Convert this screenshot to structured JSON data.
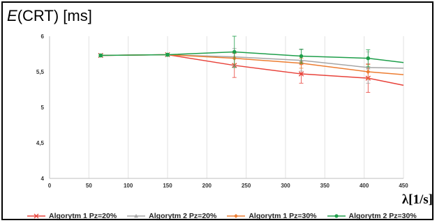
{
  "title": {
    "symbol": "E",
    "rest": "(CRT) [ms]"
  },
  "chart_data": {
    "type": "line",
    "xlabel": "λ[1/s]",
    "ylabel": "",
    "xlim": [
      0,
      450
    ],
    "ylim": [
      4,
      6
    ],
    "x_ticks": [
      0,
      50,
      100,
      150,
      200,
      250,
      300,
      350,
      400,
      450
    ],
    "y_ticks": [
      4,
      4.5,
      5,
      5.5,
      6
    ],
    "y_tick_labels": [
      "4",
      "4,5",
      "5",
      "5,5",
      "6"
    ],
    "grid": "vertical",
    "legend": "bottom",
    "series": [
      {
        "name": "Algorytm 1 Pz=20%",
        "color": "#e8423a",
        "marker": "x",
        "x": [
          65,
          150,
          235,
          320,
          405,
          450
        ],
        "y": [
          5.73,
          5.74,
          5.59,
          5.47,
          5.41,
          5.31
        ],
        "err": [
          0.02,
          0.02,
          0.17,
          0.13,
          0.2,
          0
        ]
      },
      {
        "name": "Algorytm 2 Pz=20%",
        "color": "#a6a6a6",
        "marker": "triangle",
        "x": [
          65,
          150,
          235,
          320,
          405,
          450
        ],
        "y": [
          5.73,
          5.74,
          5.71,
          5.66,
          5.56,
          5.55
        ],
        "err": [
          0.02,
          0.02,
          0.12,
          0.15,
          0.22,
          0
        ]
      },
      {
        "name": "Algorytm 1 Pz=30%",
        "color": "#ed7d31",
        "marker": "diamond",
        "x": [
          65,
          150,
          235,
          320,
          405,
          450
        ],
        "y": [
          5.73,
          5.74,
          5.69,
          5.62,
          5.5,
          5.46
        ],
        "err": [
          0.02,
          0.02,
          0.08,
          0.07,
          0.1,
          0
        ]
      },
      {
        "name": "Algorytm 2 Pz=30%",
        "color": "#1e9e4a",
        "marker": "circle",
        "x": [
          65,
          150,
          235,
          320,
          405,
          450
        ],
        "y": [
          5.73,
          5.74,
          5.78,
          5.72,
          5.69,
          5.63
        ],
        "err": [
          0.02,
          0.02,
          0.22,
          0.1,
          0.12,
          0
        ]
      }
    ]
  }
}
